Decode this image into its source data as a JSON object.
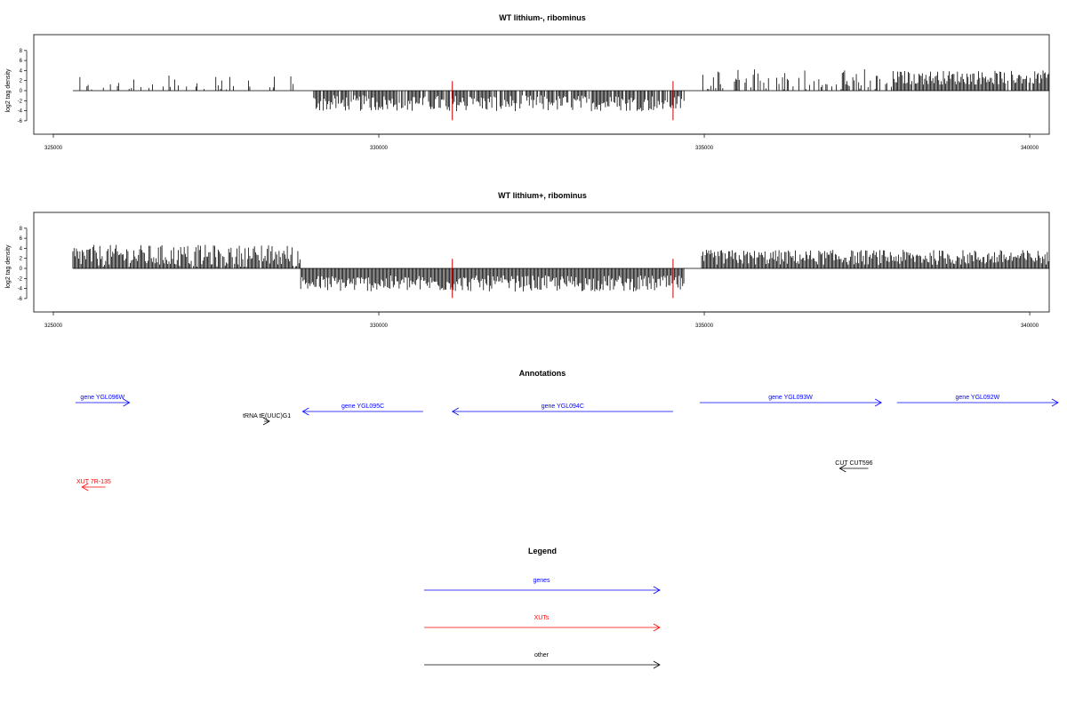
{
  "colors": {
    "genes": "#0000ff",
    "XUTs": "#ff0000",
    "other": "#000000",
    "highlight": "#cc0000"
  },
  "chart_data": [
    {
      "type": "bar",
      "title": "WT lithium-, ribominus",
      "ylabel": "log2 tag density",
      "xlim": [
        325000,
        340600
      ],
      "ylim": [
        -6,
        8
      ],
      "yticks": [
        -6,
        -4,
        -2,
        0,
        2,
        4,
        6,
        8
      ],
      "xticks": [
        325000,
        330000,
        335000,
        340000
      ],
      "grid": false,
      "highlight_x": [
        331130,
        334520
      ],
      "profile": [
        {
          "x0": 325300,
          "x1": 328700,
          "mean": 0.4,
          "amp": 3.0,
          "density": 0.25
        },
        {
          "x0": 328700,
          "x1": 329000,
          "mean": 0.4,
          "amp": 3.0,
          "density": 0.0
        },
        {
          "x0": 329000,
          "x1": 334700,
          "mean": -2.5,
          "amp": 1.6,
          "density": 0.85
        },
        {
          "x0": 334700,
          "x1": 334960,
          "mean": 0,
          "amp": 0,
          "density": 0.0
        },
        {
          "x0": 334960,
          "x1": 337900,
          "mean": 1.8,
          "amp": 2.6,
          "density": 0.45
        },
        {
          "x0": 337900,
          "x1": 340300,
          "mean": 2.6,
          "amp": 1.4,
          "density": 0.95
        }
      ]
    },
    {
      "type": "bar",
      "title": "WT lithium+, ribominus",
      "ylabel": "log2 tag density",
      "xlim": [
        325000,
        340600
      ],
      "ylim": [
        -6,
        8
      ],
      "yticks": [
        -6,
        -4,
        -2,
        0,
        2,
        4,
        6,
        8
      ],
      "xticks": [
        325000,
        330000,
        335000,
        340000
      ],
      "grid": false,
      "highlight_x": [
        331130,
        334520
      ],
      "profile": [
        {
          "x0": 325300,
          "x1": 328800,
          "mean": 2.5,
          "amp": 2.2,
          "density": 0.95
        },
        {
          "x0": 328800,
          "x1": 334700,
          "mean": -3.0,
          "amp": 1.6,
          "density": 1.0
        },
        {
          "x0": 334700,
          "x1": 334960,
          "mean": 0,
          "amp": 0,
          "density": 0.0
        },
        {
          "x0": 334960,
          "x1": 340300,
          "mean": 2.2,
          "amp": 1.5,
          "density": 1.0
        }
      ]
    }
  ],
  "annotations": {
    "title": "Annotations",
    "features": [
      {
        "label": "gene YGL096W",
        "category": "genes",
        "start": 325340,
        "end": 326170,
        "strand": "+",
        "row": 0
      },
      {
        "label": "gene YGL095C",
        "category": "genes",
        "start": 328830,
        "end": 330680,
        "strand": "-",
        "row": 1
      },
      {
        "label": "gene YGL094C",
        "category": "genes",
        "start": 331130,
        "end": 334520,
        "strand": "-",
        "row": 1
      },
      {
        "label": "gene YGL093W",
        "category": "genes",
        "start": 334930,
        "end": 337720,
        "strand": "+",
        "row": 0
      },
      {
        "label": "gene YGL092W",
        "category": "genes",
        "start": 337960,
        "end": 341000,
        "strand": "+",
        "row": 0
      },
      {
        "label": "tRNA tE(UUC)G1",
        "category": "other",
        "start": 328240,
        "end": 328320,
        "strand": "+",
        "row": 2
      },
      {
        "label": "CUT CUT596",
        "category": "other",
        "start": 337080,
        "end": 337520,
        "strand": "-",
        "row": 3
      },
      {
        "label": "XUT 7R-135",
        "category": "XUTs",
        "start": 325440,
        "end": 325800,
        "strand": "-",
        "row": 4
      }
    ]
  },
  "legend": {
    "title": "Legend",
    "items": [
      {
        "label": "genes",
        "category": "genes"
      },
      {
        "label": "XUTs",
        "category": "XUTs"
      },
      {
        "label": "other",
        "category": "other"
      }
    ]
  }
}
